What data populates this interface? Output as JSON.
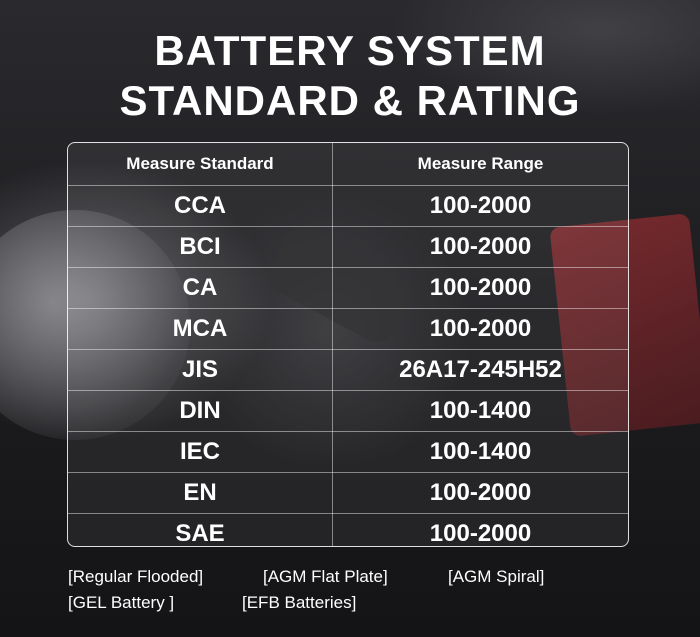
{
  "title": {
    "line1": "BATTERY SYSTEM",
    "line2": "STANDARD & RATING"
  },
  "table": {
    "headers": [
      "Measure Standard",
      "Measure Range"
    ],
    "rows": [
      {
        "standard": "CCA",
        "range": "100-2000"
      },
      {
        "standard": "BCI",
        "range": "100-2000"
      },
      {
        "standard": "CA",
        "range": "100-2000"
      },
      {
        "standard": "MCA",
        "range": "100-2000"
      },
      {
        "standard": "JIS",
        "range": "26A17-245H52"
      },
      {
        "standard": "DIN",
        "range": "100-1400"
      },
      {
        "standard": "IEC",
        "range": "100-1400"
      },
      {
        "standard": "EN",
        "range": "100-2000"
      },
      {
        "standard": "SAE",
        "range": "100-2000"
      }
    ]
  },
  "battery_types": [
    "[Regular Flooded]",
    "[AGM Flat Plate]",
    "[AGM Spiral]",
    "[GEL Battery ]",
    "[EFB Batteries]"
  ]
}
